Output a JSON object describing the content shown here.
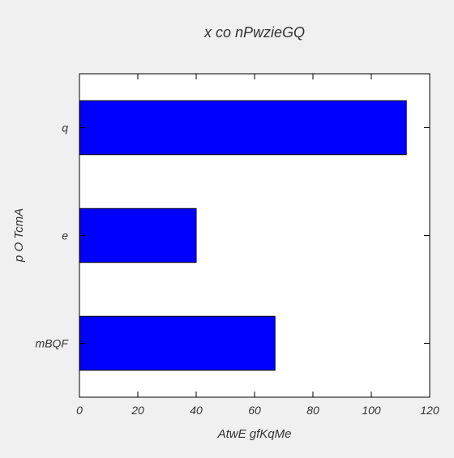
{
  "chart_data": {
    "type": "bar",
    "orientation": "horizontal",
    "title": "x co nPwzieGQ",
    "xlabel": "AtwE gfKqMe",
    "ylabel": "p  O TcmA",
    "categories": [
      "mBQF",
      "e",
      "q"
    ],
    "values": [
      67,
      40,
      112
    ],
    "xlim": [
      0,
      120
    ],
    "xticks": [
      0,
      20,
      40,
      60,
      80,
      100,
      120
    ],
    "xtick_labels": [
      "0",
      "20",
      "40",
      "60",
      "80",
      "100",
      "120"
    ],
    "grid": false,
    "legend": "none",
    "bar_color": "#0000ff",
    "edge_color": "#000000",
    "background_color": "#ffffff",
    "figure_color": "#f0f0f0"
  }
}
